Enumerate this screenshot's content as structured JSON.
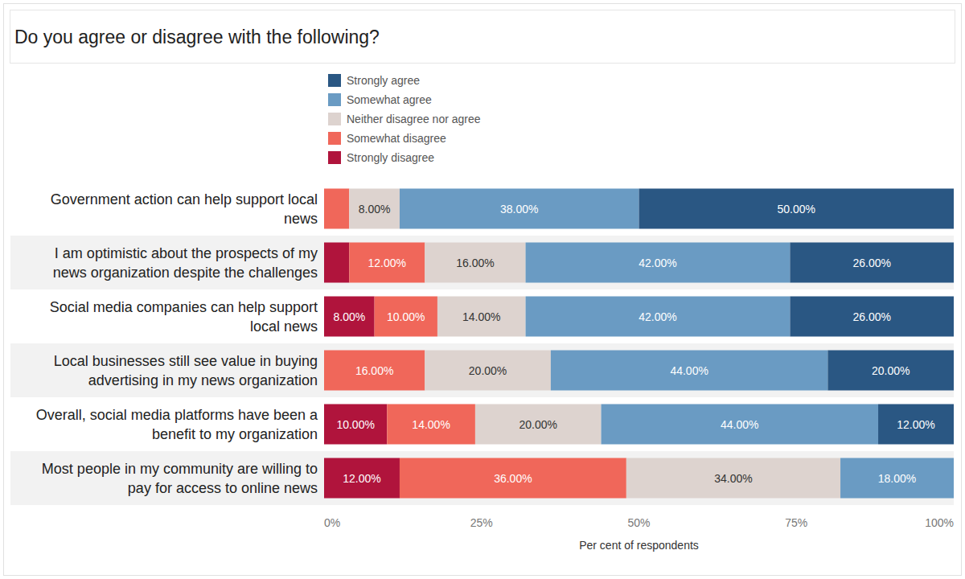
{
  "chart_data": {
    "type": "bar",
    "orientation": "horizontal",
    "stacked": true,
    "data_labels": true,
    "grid": false,
    "legend": "top",
    "title": "Do you agree or disagree with the following?",
    "x_label": "Per cent of respondents",
    "categories": [
      "Government action can help support local news",
      "I am optimistic about the prospects of my news organization despite the challenges",
      "Social media companies can help support local news",
      "Local businesses still see value in buying advertising in my news organization",
      "Overall, social media platforms have been a benefit to my organization",
      "Most people in my community are willing to pay for access to online news"
    ],
    "xlim": [
      0,
      100
    ],
    "xticks": [
      {
        "value": 0,
        "label": "0%"
      },
      {
        "value": 25,
        "label": "25%"
      },
      {
        "value": 50,
        "label": "50%"
      },
      {
        "value": 75,
        "label": "75%"
      },
      {
        "value": 100,
        "label": "100%"
      }
    ],
    "series": [
      {
        "name": "Strongly disagree",
        "color": "#b0143c",
        "values": [
          0,
          4,
          8,
          0,
          10,
          12
        ],
        "value_labels": [
          null,
          null,
          "8.00%",
          null,
          "10.00%",
          "12.00%"
        ]
      },
      {
        "name": "Somewhat disagree",
        "color": "#f0675a",
        "values": [
          4,
          12,
          10,
          16,
          14,
          36
        ],
        "value_labels": [
          null,
          "12.00%",
          "10.00%",
          "16.00%",
          "14.00%",
          "36.00%"
        ]
      },
      {
        "name": "Neither disagree nor agree",
        "color": "#ddd3cf",
        "values": [
          8,
          16,
          14,
          20,
          20,
          34
        ],
        "value_labels": [
          "8.00%",
          "16.00%",
          "14.00%",
          "20.00%",
          "20.00%",
          "34.00%"
        ]
      },
      {
        "name": "Somewhat agree",
        "color": "#6a9bc3",
        "values": [
          38,
          42,
          42,
          44,
          44,
          18
        ],
        "value_labels": [
          "38.00%",
          "42.00%",
          "42.00%",
          "44.00%",
          "44.00%",
          "18.00%"
        ]
      },
      {
        "name": "Strongly agree",
        "color": "#2a5783",
        "values": [
          50,
          26,
          26,
          20,
          12,
          0
        ],
        "value_labels": [
          "50.00%",
          "26.00%",
          "26.00%",
          "20.00%",
          "12.00%",
          null
        ]
      }
    ]
  }
}
